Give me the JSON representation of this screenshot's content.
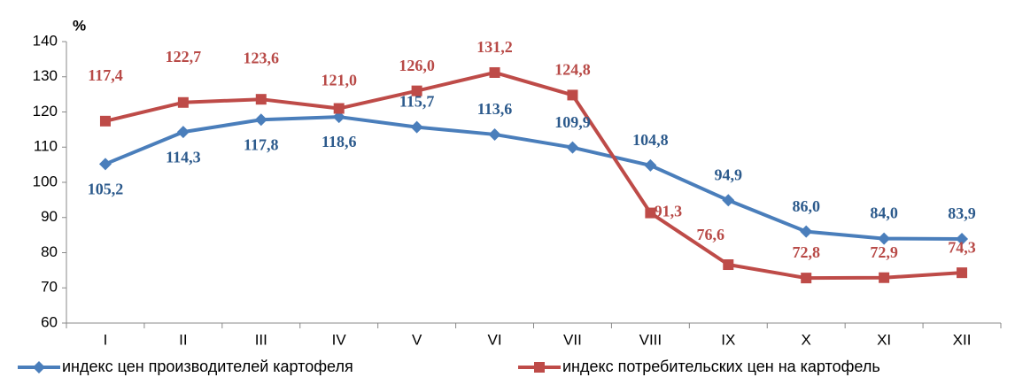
{
  "chart_data": {
    "type": "line",
    "y_label": "%",
    "categories": [
      "I",
      "II",
      "III",
      "IV",
      "V",
      "VI",
      "VII",
      "VIII",
      "IX",
      "X",
      "XI",
      "XII"
    ],
    "series": [
      {
        "name": "индекс цен производителей картофеля",
        "color": "#4a7ebb",
        "values": [
          105.2,
          114.3,
          117.8,
          118.6,
          115.7,
          113.6,
          109.9,
          104.8,
          94.9,
          86.0,
          84.0,
          83.9
        ],
        "value_labels": [
          "105,2",
          "114,3",
          "117,8",
          "118,6",
          "115,7",
          "113,6",
          "109,9",
          "104,8",
          "94,9",
          "86,0",
          "84,0",
          "83,9"
        ]
      },
      {
        "name": "индекс потребительских цен на картофель",
        "color": "#be4b48",
        "values": [
          117.4,
          122.7,
          123.6,
          121.0,
          126.0,
          131.2,
          124.8,
          91.3,
          76.6,
          72.8,
          72.9,
          74.3
        ],
        "value_labels": [
          "117,4",
          "122,7",
          "123,6",
          "121,0",
          "126,0",
          "131,2",
          "124,8",
          "91,3",
          "76,6",
          "72,8",
          "72,9",
          "74,3"
        ]
      }
    ],
    "ylim": [
      60,
      140
    ],
    "yticks": [
      60,
      70,
      80,
      90,
      100,
      110,
      120,
      130,
      140
    ],
    "grid": false,
    "legend": "bottom"
  }
}
